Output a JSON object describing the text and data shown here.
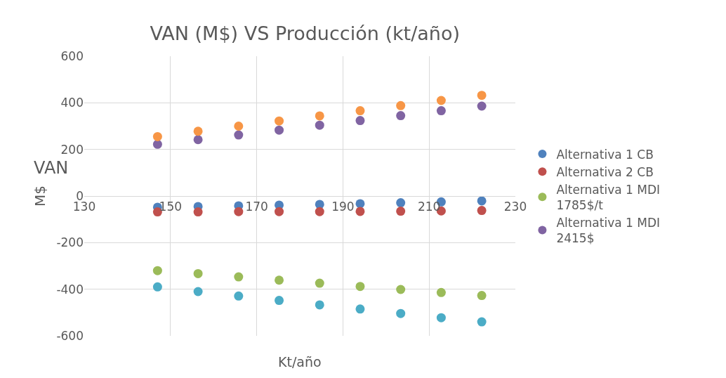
{
  "chart_data": {
    "type": "scatter",
    "title": "VAN (M$) VS Producción (kt/año)",
    "xlabel": "Kt/año",
    "ylabel": "M$",
    "annotations": [
      "VAN"
    ],
    "x": [
      147,
      156.4,
      165.8,
      175.2,
      184.6,
      194,
      203.4,
      212.8,
      222.2
    ],
    "series": [
      {
        "name": "Alternativa 1 CB",
        "color": "#4f81bd",
        "values": [
          -48,
          -45,
          -42,
          -39,
          -36,
          -33,
          -29,
          -25,
          -21
        ]
      },
      {
        "name": "Alternativa 2 CB",
        "color": "#c0504d",
        "values": [
          -68,
          -68,
          -67,
          -67,
          -67,
          -66,
          -65,
          -64,
          -62
        ]
      },
      {
        "name": "Alternativa 1 MDI 1785$/t",
        "color": "#9bbb59",
        "values": [
          -320,
          -333,
          -347,
          -361,
          -374,
          -388,
          -401,
          -414,
          -427
        ]
      },
      {
        "name": "Alternativa 1 MDI 2415$",
        "color": "#8064a2",
        "values": [
          222,
          242,
          262,
          283,
          304,
          324,
          345,
          366,
          386
        ]
      },
      {
        "color": "#4bacc6",
        "values": [
          -390,
          -410,
          -429,
          -448,
          -467,
          -485,
          -504,
          -522,
          -540
        ]
      },
      {
        "color": "#f79646",
        "values": [
          255,
          278,
          300,
          322,
          344,
          366,
          388,
          410,
          432
        ]
      }
    ],
    "xlim": [
      130,
      230
    ],
    "xticks": [
      130,
      150,
      170,
      190,
      210,
      230
    ],
    "ylim": [
      -600,
      600
    ],
    "yticks": [
      -600,
      -400,
      -200,
      0,
      200,
      400,
      600
    ],
    "grid": true,
    "legend": "right",
    "marker": "circle"
  }
}
